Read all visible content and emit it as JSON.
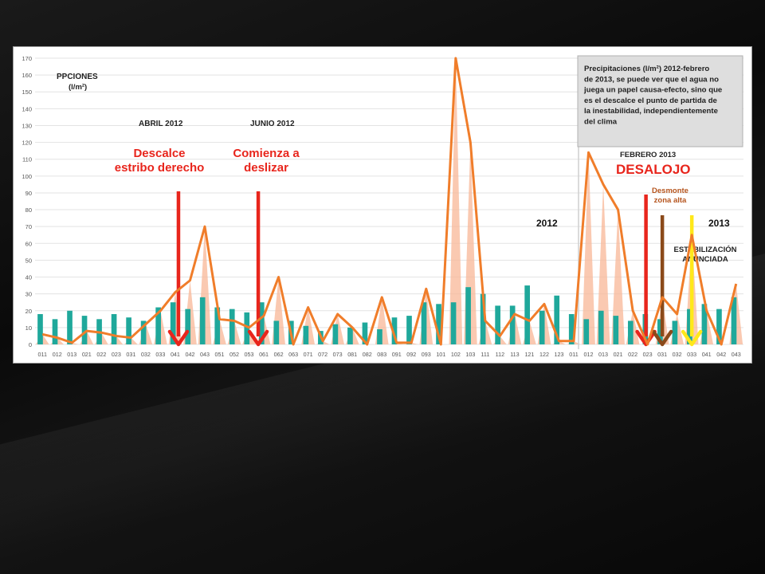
{
  "colors": {
    "bar": "#1fa89b",
    "line": "#f07d2a",
    "spike": "#f8b797",
    "red_arrow": "#e8251c",
    "brown_arrow": "#8b4a1a",
    "yellow_arrow": "#ffe81a",
    "red_text": "#e8251c",
    "brown_text": "#b5541d"
  },
  "chart_data": {
    "type": "bar",
    "ylabel": "PPCIONES",
    "ylabel_unit": "(l/m²)",
    "ylim": [
      0,
      170
    ],
    "yticks": [
      0,
      10,
      20,
      30,
      40,
      50,
      60,
      70,
      80,
      90,
      100,
      110,
      120,
      130,
      140,
      150,
      160,
      170
    ],
    "grid": true,
    "categories": [
      "011",
      "012",
      "013",
      "021",
      "022",
      "023",
      "031",
      "032",
      "033",
      "041",
      "042",
      "043",
      "051",
      "052",
      "053",
      "061",
      "062",
      "063",
      "071",
      "072",
      "073",
      "081",
      "082",
      "083",
      "091",
      "092",
      "093",
      "101",
      "102",
      "103",
      "111",
      "112",
      "113",
      "121",
      "122",
      "123",
      "011",
      "012",
      "013",
      "021",
      "022",
      "023",
      "031",
      "032",
      "033",
      "041",
      "042",
      "043"
    ],
    "series": [
      {
        "kind": "bar",
        "values": [
          18,
          15,
          20,
          17,
          15,
          18,
          16,
          14,
          22,
          25,
          21,
          28,
          22,
          21,
          19,
          25,
          14,
          14,
          11,
          8,
          12,
          10,
          13,
          9,
          16,
          17,
          25,
          24,
          25,
          34,
          30,
          23,
          23,
          35,
          20,
          29,
          18,
          15,
          20,
          17,
          14,
          18,
          15,
          14,
          21,
          24,
          21,
          28
        ]
      },
      {
        "kind": "line",
        "values": [
          6,
          4,
          1,
          8,
          7,
          5,
          4,
          12,
          20,
          31,
          38,
          70,
          15,
          14,
          10,
          17,
          40,
          0,
          22,
          2,
          18,
          10,
          0,
          28,
          1,
          1,
          33,
          0,
          170,
          120,
          14,
          5,
          18,
          14,
          24,
          2,
          2,
          114,
          95,
          80,
          20,
          0,
          28,
          18,
          65,
          20,
          0,
          36
        ]
      }
    ],
    "annotations": {
      "periods": [
        "ABRIL 2012",
        "JUNIO 2012",
        "FEBRERO 2013"
      ],
      "events": [
        "Descalce\nestribo derecho",
        "Comienza a\ndeslizar",
        "DESALOJO",
        "Desmonte\nzona alta",
        "ESTABILIZACIÓN\nANUNCIADA"
      ],
      "years": [
        "2012",
        "2013"
      ],
      "note": "Precipitaciones (l/m²) 2012-febrero de 2013, se puede ver que el agua no juega un papel causa-efecto, sino que es el descalce el punto de partida de la inestabilidad, independientemente del clima"
    }
  }
}
